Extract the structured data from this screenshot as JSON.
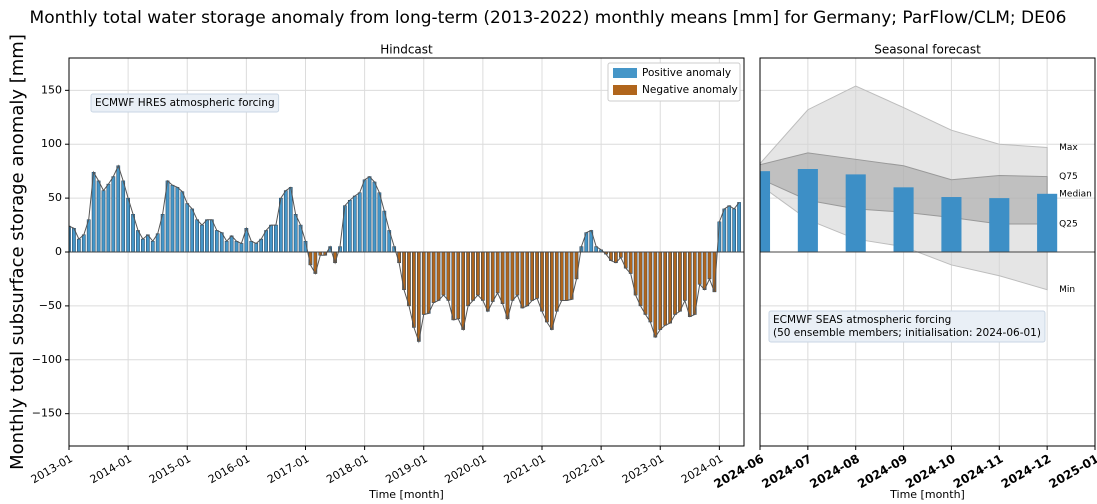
{
  "title": "Monthly total water storage anomaly from long-term (2013-2022) monthly means [mm] for Germany; ParFlow/CLM; DE06",
  "ylabel": "Monthly total subsurface storage anomaly [mm]",
  "chart_data": [
    {
      "type": "bar",
      "title": "Hindcast",
      "xlabel": "Time [month]",
      "annotation": "ECMWF HRES atmospheric forcing",
      "legend": [
        {
          "name": "Positive anomaly",
          "color": "#4596c8"
        },
        {
          "name": "Negative anomaly",
          "color": "#b0651c"
        }
      ],
      "legend_position": "upper right",
      "grid": true,
      "xlim": [
        "2013-01",
        "2024-06"
      ],
      "xticks": [
        "2013-01",
        "2014-01",
        "2015-01",
        "2016-01",
        "2017-01",
        "2018-01",
        "2019-01",
        "2020-01",
        "2021-01",
        "2022-01",
        "2023-01",
        "2024-01"
      ],
      "ylim": [
        -180,
        180
      ],
      "yticks": [
        {
          "value": -150,
          "label": "−150"
        },
        {
          "value": -100,
          "label": "−100"
        },
        {
          "value": -50,
          "label": "−50"
        },
        0,
        50,
        100,
        150
      ],
      "x": [
        "2013-01",
        "2013-02",
        "2013-03",
        "2013-04",
        "2013-05",
        "2013-06",
        "2013-07",
        "2013-08",
        "2013-09",
        "2013-10",
        "2013-11",
        "2013-12",
        "2014-01",
        "2014-02",
        "2014-03",
        "2014-04",
        "2014-05",
        "2014-06",
        "2014-07",
        "2014-08",
        "2014-09",
        "2014-10",
        "2014-11",
        "2014-12",
        "2015-01",
        "2015-02",
        "2015-03",
        "2015-04",
        "2015-05",
        "2015-06",
        "2015-07",
        "2015-08",
        "2015-09",
        "2015-10",
        "2015-11",
        "2015-12",
        "2016-01",
        "2016-02",
        "2016-03",
        "2016-04",
        "2016-05",
        "2016-06",
        "2016-07",
        "2016-08",
        "2016-09",
        "2016-10",
        "2016-11",
        "2016-12",
        "2017-01",
        "2017-02",
        "2017-03",
        "2017-04",
        "2017-05",
        "2017-06",
        "2017-07",
        "2017-08",
        "2017-09",
        "2017-10",
        "2017-11",
        "2017-12",
        "2018-01",
        "2018-02",
        "2018-03",
        "2018-04",
        "2018-05",
        "2018-06",
        "2018-07",
        "2018-08",
        "2018-09",
        "2018-10",
        "2018-11",
        "2018-12",
        "2019-01",
        "2019-02",
        "2019-03",
        "2019-04",
        "2019-05",
        "2019-06",
        "2019-07",
        "2019-08",
        "2019-09",
        "2019-10",
        "2019-11",
        "2019-12",
        "2020-01",
        "2020-02",
        "2020-03",
        "2020-04",
        "2020-05",
        "2020-06",
        "2020-07",
        "2020-08",
        "2020-09",
        "2020-10",
        "2020-11",
        "2020-12",
        "2021-01",
        "2021-02",
        "2021-03",
        "2021-04",
        "2021-05",
        "2021-06",
        "2021-07",
        "2021-08",
        "2021-09",
        "2021-10",
        "2021-11",
        "2021-12",
        "2022-01",
        "2022-02",
        "2022-03",
        "2022-04",
        "2022-05",
        "2022-06",
        "2022-07",
        "2022-08",
        "2022-09",
        "2022-10",
        "2022-11",
        "2022-12",
        "2023-01",
        "2023-02",
        "2023-03",
        "2023-04",
        "2023-05",
        "2023-06",
        "2023-07",
        "2023-08",
        "2023-09",
        "2023-10",
        "2023-11",
        "2023-12",
        "2024-01",
        "2024-02",
        "2024-03",
        "2024-04",
        "2024-05"
      ],
      "values": [
        24,
        22,
        12,
        16,
        30,
        74,
        66,
        57,
        63,
        70,
        80,
        66,
        50,
        35,
        20,
        12,
        16,
        10,
        17,
        35,
        66,
        62,
        60,
        56,
        45,
        40,
        30,
        25,
        30,
        30,
        20,
        18,
        10,
        15,
        10,
        8,
        22,
        10,
        8,
        12,
        20,
        25,
        25,
        50,
        57,
        60,
        35,
        25,
        10,
        -12,
        -20,
        -3,
        -3,
        5,
        -10,
        5,
        43,
        48,
        52,
        55,
        67,
        70,
        65,
        55,
        38,
        20,
        5,
        -10,
        -35,
        -50,
        -70,
        -83,
        -58,
        -57,
        -47,
        -45,
        -40,
        -45,
        -63,
        -62,
        -72,
        -50,
        -45,
        -40,
        -45,
        -55,
        -46,
        -38,
        -48,
        -62,
        -45,
        -40,
        -52,
        -50,
        -45,
        -43,
        -55,
        -65,
        -72,
        -55,
        -45,
        -45,
        -44,
        -25,
        5,
        18,
        20,
        5,
        2,
        -2,
        -8,
        -10,
        -5,
        -15,
        -20,
        -40,
        -50,
        -58,
        -65,
        -79,
        -72,
        -68,
        -66,
        -58,
        -55,
        -45,
        -60,
        -58,
        -30,
        -35,
        -25,
        -37,
        28,
        40,
        43,
        40,
        46
      ]
    },
    {
      "type": "forecast",
      "title": "Seasonal forecast",
      "xlabel": "Time [month]",
      "annotation": [
        "ECMWF SEAS atmospheric forcing",
        "(50 ensemble members; initialisation: 2024-06-01)"
      ],
      "grid": true,
      "xlim": [
        "2024-06",
        "2025-01"
      ],
      "xticks": [
        "2024-06",
        "2024-07",
        "2024-08",
        "2024-09",
        "2024-10",
        "2024-11",
        "2024-12",
        "2025-01"
      ],
      "ylim": [
        -180,
        180
      ],
      "yticks": [
        -150,
        -100,
        -50,
        0,
        50,
        100,
        150
      ],
      "x": [
        "2024-06",
        "2024-07",
        "2024-08",
        "2024-09",
        "2024-10",
        "2024-11",
        "2024-12"
      ],
      "series": [
        {
          "name": "Max",
          "color": "#d4d4d4",
          "values": [
            82,
            132,
            154,
            134,
            113,
            100,
            97
          ]
        },
        {
          "name": "Q75",
          "color": "#a6a6a6",
          "values": [
            81,
            92,
            86,
            80,
            67,
            71,
            70
          ]
        },
        {
          "name": "Median",
          "color": "#3d8fc6",
          "values": [
            75,
            77,
            72,
            60,
            51,
            50,
            54
          ]
        },
        {
          "name": "Q25",
          "color": "#a6a6a6",
          "values": [
            68,
            48,
            40,
            37,
            32,
            26,
            26
          ]
        },
        {
          "name": "Min",
          "color": "#d4d4d4",
          "values": [
            62,
            30,
            12,
            5,
            -12,
            -22,
            -35
          ]
        }
      ]
    }
  ]
}
